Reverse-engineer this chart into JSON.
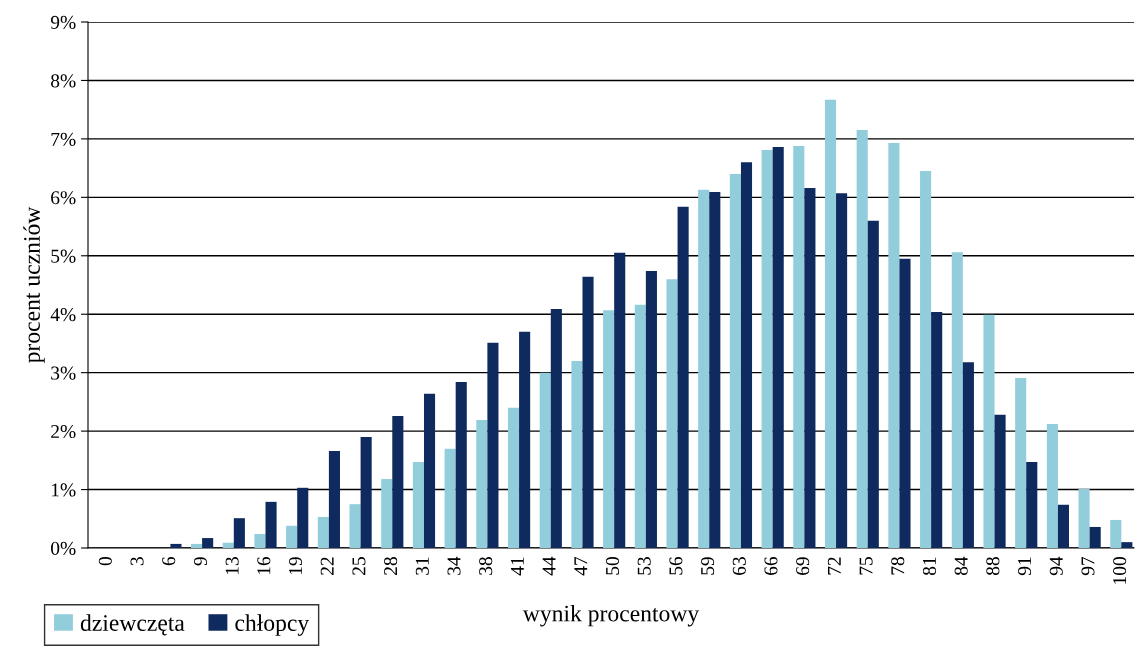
{
  "chart_data": {
    "type": "bar",
    "xlabel": "wynik procentowy",
    "ylabel": "procent uczniów",
    "categories": [
      "0",
      "3",
      "6",
      "9",
      "13",
      "16",
      "19",
      "22",
      "25",
      "28",
      "31",
      "34",
      "38",
      "41",
      "44",
      "47",
      "50",
      "53",
      "56",
      "59",
      "63",
      "66",
      "69",
      "72",
      "75",
      "78",
      "81",
      "84",
      "88",
      "91",
      "94",
      "97",
      "100"
    ],
    "series": [
      {
        "name": "dziewczęta",
        "color": "#92cddc",
        "values": [
          0,
          0,
          0,
          0.07,
          0.09,
          0.24,
          0.38,
          0.53,
          0.75,
          1.18,
          1.47,
          1.7,
          2.19,
          2.4,
          3.0,
          3.2,
          4.07,
          4.16,
          4.6,
          6.13,
          6.4,
          6.81,
          6.88,
          7.67,
          7.15,
          6.93,
          6.45,
          5.06,
          3.99,
          2.91,
          2.12,
          1.01,
          0.48
        ]
      },
      {
        "name": "chłopcy",
        "color": "#0f2a5f",
        "values": [
          0,
          0,
          0.07,
          0.17,
          0.51,
          0.79,
          1.03,
          1.66,
          1.9,
          2.26,
          2.64,
          2.84,
          3.51,
          3.7,
          4.09,
          4.64,
          5.05,
          4.74,
          5.84,
          6.09,
          6.6,
          6.86,
          6.16,
          6.07,
          5.6,
          4.95,
          4.04,
          3.18,
          2.28,
          1.47,
          0.74,
          0.36,
          0.1
        ]
      }
    ],
    "ylim": [
      0,
      9
    ],
    "yticks": [
      {
        "value": 0,
        "label": "0%"
      },
      {
        "value": 1,
        "label": "1%"
      },
      {
        "value": 2,
        "label": "2%"
      },
      {
        "value": 3,
        "label": "3%"
      },
      {
        "value": 4,
        "label": "4%"
      },
      {
        "value": 5,
        "label": "5%"
      },
      {
        "value": 6,
        "label": "6%"
      },
      {
        "value": 7,
        "label": "7%"
      },
      {
        "value": 8,
        "label": "8%"
      },
      {
        "value": 9,
        "label": "9%"
      }
    ],
    "grid": "y",
    "legend": "bottom left"
  }
}
